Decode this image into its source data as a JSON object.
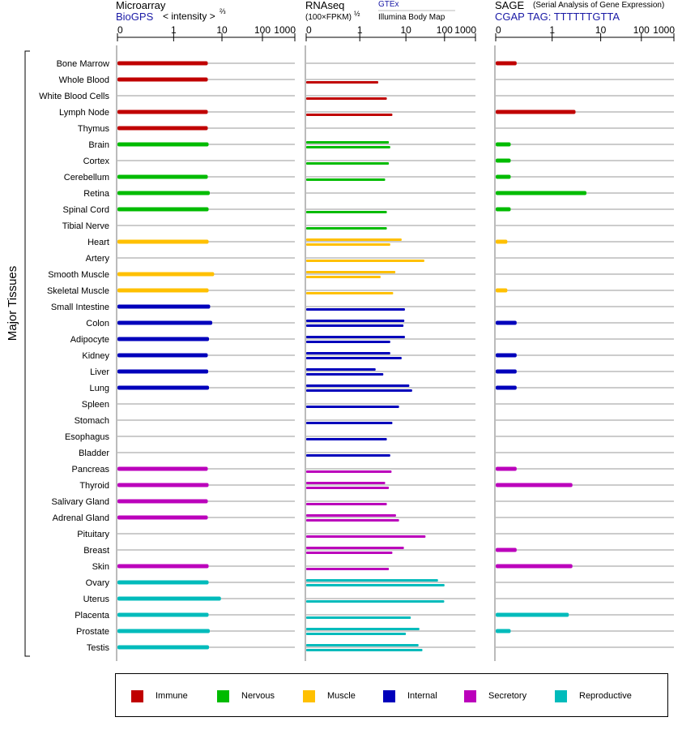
{
  "panels": {
    "microarray": {
      "title": "Microarray",
      "subtitle_link": "BioGPS",
      "subtitle_note": "< intensity >",
      "exp": "⅔"
    },
    "rnaseq": {
      "title": "RNAseq",
      "subtitle": "(100×FPKM)",
      "exp": "½",
      "link1": "GTEx",
      "link2": "Illumina Body Map"
    },
    "sage": {
      "title": "SAGE",
      "note": "(Serial Analysis of Gene Expression)",
      "tag": "CGAP TAG: TTTTTTGTTA"
    }
  },
  "y_group_label": "Major Tissues",
  "legend": [
    {
      "label": "Immune",
      "color": "#c00000"
    },
    {
      "label": "Nervous",
      "color": "#00bb00"
    },
    {
      "label": "Muscle",
      "color": "#ffc000"
    },
    {
      "label": "Internal",
      "color": "#0000bb"
    },
    {
      "label": "Secretory",
      "color": "#bb00bb"
    },
    {
      "label": "Reproductive",
      "color": "#00bbbb"
    }
  ],
  "chart_data": [
    {
      "type": "bar",
      "title": "Microarray",
      "x_ticks": [
        "0",
        "1",
        "10",
        "100",
        "1000"
      ],
      "xlim": [
        0,
        1000
      ],
      "categories": [
        "Bone Marrow",
        "Whole Blood",
        "White Blood Cells",
        "Lymph Node",
        "Thymus",
        "Brain",
        "Cortex",
        "Cerebellum",
        "Retina",
        "Spinal Cord",
        "Tibial Nerve",
        "Heart",
        "Artery",
        "Smooth Muscle",
        "Skeletal Muscle",
        "Small Intestine",
        "Colon",
        "Adipocyte",
        "Kidney",
        "Liver",
        "Lung",
        "Spleen",
        "Stomach",
        "Esophagus",
        "Bladder",
        "Pancreas",
        "Thyroid",
        "Salivary Gland",
        "Adrenal Gland",
        "Pituitary",
        "Breast",
        "Skin",
        "Ovary",
        "Uterus",
        "Placenta",
        "Prostate",
        "Testis"
      ],
      "groups": [
        "Immune",
        "Immune",
        "Immune",
        "Immune",
        "Immune",
        "Nervous",
        "Nervous",
        "Nervous",
        "Nervous",
        "Nervous",
        "Nervous",
        "Muscle",
        "Muscle",
        "Muscle",
        "Muscle",
        "Internal",
        "Internal",
        "Internal",
        "Internal",
        "Internal",
        "Internal",
        "Internal",
        "Internal",
        "Internal",
        "Internal",
        "Secretory",
        "Secretory",
        "Secretory",
        "Secretory",
        "Secretory",
        "Secretory",
        "Secretory",
        "Reproductive",
        "Reproductive",
        "Reproductive",
        "Reproductive",
        "Reproductive"
      ],
      "values": [
        5,
        5,
        null,
        5,
        5,
        5.2,
        null,
        5,
        5.5,
        5.2,
        null,
        5.2,
        null,
        6.8,
        5.2,
        5.6,
        6.2,
        5.3,
        5,
        5.1,
        5.3,
        null,
        null,
        null,
        null,
        5,
        5.2,
        5,
        5,
        null,
        null,
        5.2,
        5.2,
        9.5,
        5.2,
        5.5,
        5.3
      ]
    },
    {
      "type": "bar",
      "title": "RNAseq",
      "x_ticks": [
        "0",
        "1",
        "10",
        "100",
        "1000"
      ],
      "xlim": [
        0,
        1000
      ],
      "categories": [
        "Bone Marrow",
        "Whole Blood",
        "White Blood Cells",
        "Lymph Node",
        "Thymus",
        "Brain",
        "Cortex",
        "Cerebellum",
        "Retina",
        "Spinal Cord",
        "Tibial Nerve",
        "Heart",
        "Artery",
        "Smooth Muscle",
        "Skeletal Muscle",
        "Small Intestine",
        "Colon",
        "Adipocyte",
        "Kidney",
        "Liver",
        "Lung",
        "Spleen",
        "Stomach",
        "Esophagus",
        "Bladder",
        "Pancreas",
        "Thyroid",
        "Salivary Gland",
        "Adrenal Gland",
        "Pituitary",
        "Breast",
        "Skin",
        "Ovary",
        "Uterus",
        "Placenta",
        "Prostate",
        "Testis"
      ],
      "series": [
        {
          "name": "GTEx",
          "values": [
            null,
            2.5,
            3.8,
            null,
            null,
            4.2,
            4.2,
            3.5,
            null,
            3.8,
            3.8,
            8,
            28,
            5.8,
            5.2,
            9.5,
            9.2,
            9.5,
            4.5,
            2.2,
            12,
            7,
            5,
            3.8,
            4.5,
            4.8,
            3.5,
            3.8,
            6,
            30,
            9,
            4.2,
            65,
            98,
            13,
            21,
            20
          ]
        },
        {
          "name": "Illumina Body Map",
          "values": [
            null,
            null,
            null,
            5,
            null,
            4.5,
            null,
            null,
            null,
            null,
            null,
            4.5,
            null,
            2.8,
            null,
            null,
            8.8,
            4.5,
            8,
            3.2,
            14,
            null,
            null,
            null,
            null,
            null,
            4.2,
            null,
            7,
            null,
            5,
            null,
            100,
            null,
            null,
            10,
            25
          ]
        }
      ]
    },
    {
      "type": "bar",
      "title": "SAGE",
      "x_ticks": [
        "0",
        "1",
        "10",
        "100",
        "1000"
      ],
      "xlim": [
        0,
        1000
      ],
      "categories": [
        "Bone Marrow",
        "Whole Blood",
        "White Blood Cells",
        "Lymph Node",
        "Thymus",
        "Brain",
        "Cortex",
        "Cerebellum",
        "Retina",
        "Spinal Cord",
        "Tibial Nerve",
        "Heart",
        "Artery",
        "Smooth Muscle",
        "Skeletal Muscle",
        "Small Intestine",
        "Colon",
        "Adipocyte",
        "Kidney",
        "Liver",
        "Lung",
        "Spleen",
        "Stomach",
        "Esophagus",
        "Bladder",
        "Pancreas",
        "Thyroid",
        "Salivary Gland",
        "Adrenal Gland",
        "Pituitary",
        "Breast",
        "Skin",
        "Ovary",
        "Uterus",
        "Placenta",
        "Prostate",
        "Testis"
      ],
      "values": [
        0.1,
        null,
        null,
        3,
        null,
        0.05,
        0.05,
        0.05,
        5,
        0.05,
        null,
        0.03,
        null,
        null,
        0.03,
        null,
        0.1,
        null,
        0.1,
        0.1,
        0.1,
        null,
        null,
        null,
        null,
        0.1,
        2.6,
        null,
        null,
        null,
        0.1,
        2.6,
        null,
        null,
        2.2,
        0.05,
        null
      ]
    }
  ]
}
